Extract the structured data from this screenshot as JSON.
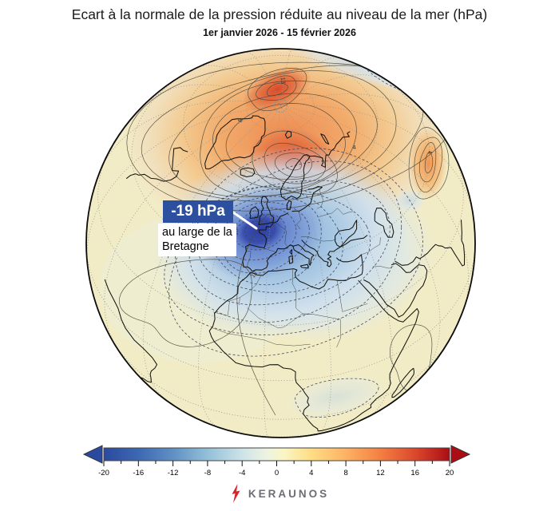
{
  "title": "Ecart à la normale de la pression réduite au niveau de la mer (hPa)",
  "subtitle": "1er janvier 2026 - 15 février 2026",
  "annotation": {
    "value": "-19 hPa",
    "location": "au large de la Bretagne",
    "value_box_color": "#2d4fa0",
    "leader_color": "#ffffff"
  },
  "map": {
    "contour_labels": [
      "13",
      "8",
      "16",
      "12",
      "4",
      "4"
    ]
  },
  "colorbar": {
    "min": -20,
    "max": 20,
    "major_ticks": [
      -20,
      -16,
      -12,
      -8,
      -4,
      0,
      4,
      8,
      12,
      16,
      20
    ],
    "minor_step": 2,
    "left_arrow_color": "#2a4a9f",
    "right_arrow_color": "#ab0d14",
    "gradient_stops": [
      {
        "p": 0.0,
        "c": "#2a4a9f"
      },
      {
        "p": 0.1,
        "c": "#3d68b2"
      },
      {
        "p": 0.2,
        "c": "#5f90c4"
      },
      {
        "p": 0.3,
        "c": "#93c0d8"
      },
      {
        "p": 0.4,
        "c": "#cde3e9"
      },
      {
        "p": 0.47,
        "c": "#edf3e0"
      },
      {
        "p": 0.52,
        "c": "#faf6c4"
      },
      {
        "p": 0.6,
        "c": "#fedd84"
      },
      {
        "p": 0.7,
        "c": "#fdb264"
      },
      {
        "p": 0.8,
        "c": "#f47f42"
      },
      {
        "p": 0.9,
        "c": "#dc482d"
      },
      {
        "p": 1.0,
        "c": "#ab0d14"
      }
    ]
  },
  "logo": {
    "text": "KERAUNOS",
    "bolt_color": "#d8232a",
    "text_color": "#6d6d74"
  }
}
